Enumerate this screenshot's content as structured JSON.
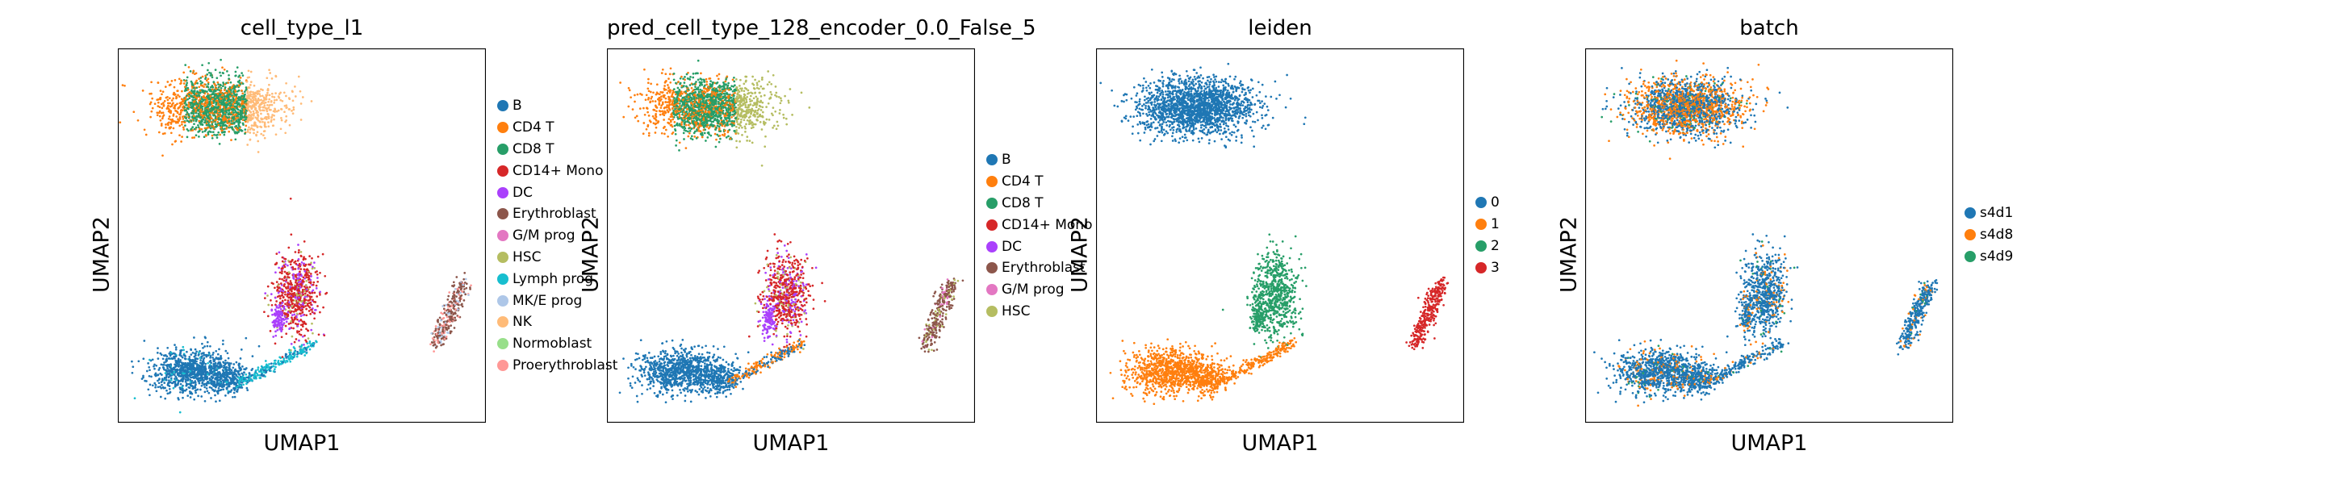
{
  "palettes": {
    "cell_type": [
      "#1f77b4",
      "#ff7f0e",
      "#279e68",
      "#d62728",
      "#aa40fc",
      "#8c564b",
      "#e377c2",
      "#b5bd61",
      "#17becf",
      "#aec7e8",
      "#ffbb78",
      "#98df8a",
      "#ff9896"
    ],
    "numeric": [
      "#1f77b4",
      "#ff7f0e",
      "#279e68",
      "#d62728"
    ]
  },
  "chart_data": [
    {
      "type": "scatter",
      "title": "cell_type_l1",
      "xlabel": "UMAP1",
      "ylabel": "UMAP2",
      "legend_position": "right",
      "categories": [
        "B",
        "CD4 T",
        "CD8 T",
        "CD14+ Mono",
        "DC",
        "Erythroblast",
        "G/M prog",
        "HSC",
        "Lymph prog",
        "MK/E prog",
        "NK",
        "Normoblast",
        "Proerythroblast"
      ],
      "colors": [
        "#1f77b4",
        "#ff7f0e",
        "#279e68",
        "#d62728",
        "#aa40fc",
        "#8c564b",
        "#e377c2",
        "#b5bd61",
        "#17becf",
        "#aec7e8",
        "#ffbb78",
        "#98df8a",
        "#ff9896"
      ]
    },
    {
      "type": "scatter",
      "title": "pred_cell_type_128_encoder_0.0_False_5",
      "xlabel": "UMAP1",
      "ylabel": "UMAP2",
      "legend_position": "right",
      "categories": [
        "B",
        "CD4 T",
        "CD8 T",
        "CD14+ Mono",
        "DC",
        "Erythroblast",
        "G/M prog",
        "HSC"
      ],
      "colors": [
        "#1f77b4",
        "#ff7f0e",
        "#279e68",
        "#d62728",
        "#aa40fc",
        "#8c564b",
        "#e377c2",
        "#b5bd61"
      ]
    },
    {
      "type": "scatter",
      "title": "leiden",
      "xlabel": "UMAP1",
      "ylabel": "UMAP2",
      "legend_position": "right",
      "categories": [
        "0",
        "1",
        "2",
        "3"
      ],
      "colors": [
        "#1f77b4",
        "#ff7f0e",
        "#279e68",
        "#d62728"
      ]
    },
    {
      "type": "scatter",
      "title": "batch",
      "xlabel": "UMAP1",
      "ylabel": "UMAP2",
      "legend_position": "right",
      "categories": [
        "s4d1",
        "s4d8",
        "s4d9"
      ],
      "colors": [
        "#1f77b4",
        "#ff7f0e",
        "#279e68"
      ]
    }
  ]
}
